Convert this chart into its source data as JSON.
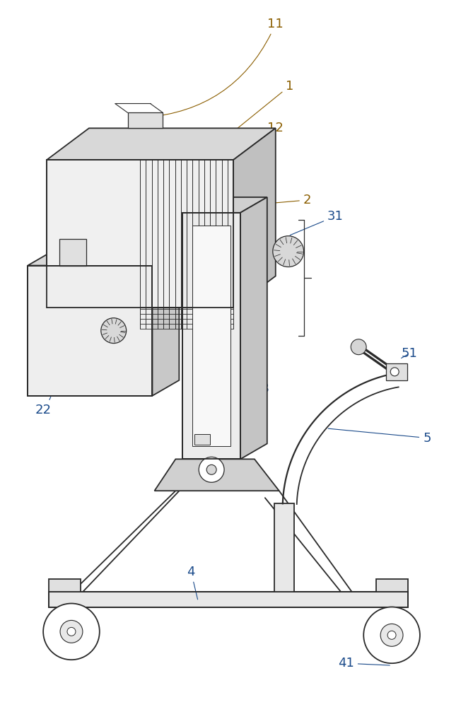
{
  "bg_color": "#ffffff",
  "line_color": "#2a2a2a",
  "label_color": "#8B5E00",
  "lbl_color2": "#1a4a8a",
  "figsize": [
    6.69,
    10.0
  ],
  "dpi": 100
}
